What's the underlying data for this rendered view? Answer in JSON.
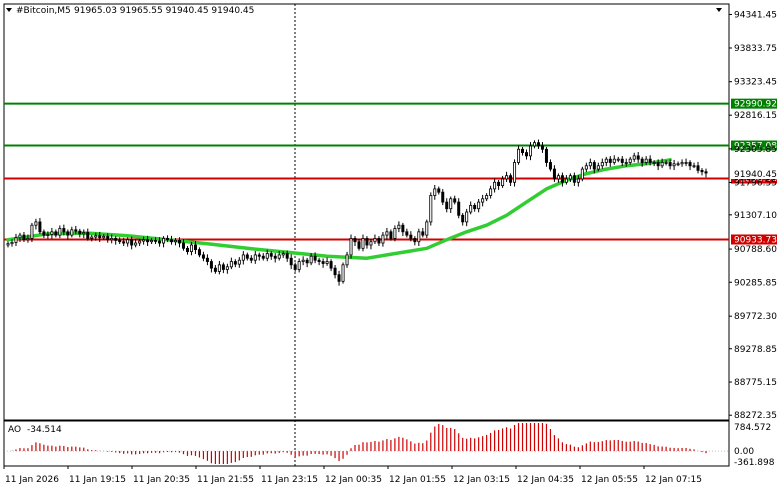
{
  "header": {
    "symbol": "#Bitcoin,M5",
    "ohlc": "91965.03 91965.55 91940.45 91940.45"
  },
  "colors": {
    "background": "#ffffff",
    "frame": "#000000",
    "candle": "#000000",
    "moving_average": "#32cd32",
    "level_green": "#008000",
    "level_red": "#d00000",
    "ao_positive": "#d00000",
    "ao_negative": "#d00000",
    "grid": "#ffffff"
  },
  "chart_data": {
    "type": "candlestick",
    "price_axis": {
      "ticks": [
        "94341.45",
        "93833.75",
        "93323.45",
        "92816.15",
        "92305.85",
        "91796.55",
        "91307.10",
        "90788.60",
        "90285.85",
        "89772.30",
        "89278.85",
        "88775.15",
        "88272.35"
      ],
      "ylim": [
        88200,
        94500
      ]
    },
    "time_axis": {
      "ticks": [
        "11 Jan 2026",
        "11 Jan 19:15",
        "11 Jan 20:35",
        "11 Jan 21:55",
        "11 Jan 23:15",
        "12 Jan 00:35",
        "12 Jan 01:55",
        "12 Jan 03:15",
        "12 Jan 04:35",
        "12 Jan 05:55",
        "12 Jan 07:15"
      ]
    },
    "current_price_label": "91940.45",
    "levels": [
      {
        "value": 92990.92,
        "label": "92990.92",
        "color": "green"
      },
      {
        "value": 92357.08,
        "label": "92357.08",
        "color": "green"
      },
      {
        "value": 91856.96,
        "label": "91856.96",
        "color": "red"
      },
      {
        "value": 90933.73,
        "label": "90933.73",
        "color": "red"
      }
    ],
    "closes": [
      90870,
      90890,
      90960,
      91000,
      90930,
      90950,
      91150,
      91200,
      91050,
      91000,
      91010,
      91050,
      91000,
      91100,
      91050,
      91000,
      91080,
      91060,
      91020,
      91040,
      90950,
      90970,
      90990,
      90960,
      90980,
      90930,
      90950,
      90920,
      90900,
      90880,
      90930,
      90850,
      90880,
      90910,
      90930,
      90900,
      90920,
      90910,
      90880,
      90950,
      90930,
      90900,
      90920,
      90880,
      90800,
      90750,
      90850,
      90780,
      90700,
      90650,
      90600,
      90500,
      90450,
      90550,
      90480,
      90520,
      90600,
      90560,
      90620,
      90700,
      90650,
      90620,
      90700,
      90680,
      90650,
      90720,
      90680,
      90650,
      90700,
      90720,
      90650,
      90550,
      90480,
      90600,
      90620,
      90580,
      90680,
      90620,
      90600,
      90570,
      90600,
      90500,
      90400,
      90300,
      90550,
      90700,
      90950,
      90900,
      90800,
      90950,
      90850,
      90900,
      90950,
      90880,
      91000,
      91050,
      90950,
      91100,
      91150,
      91050,
      91000,
      90950,
      90900,
      91050,
      91000,
      91200,
      91600,
      91700,
      91650,
      91500,
      91400,
      91550,
      91500,
      91300,
      91200,
      91350,
      91450,
      91400,
      91500,
      91550,
      91600,
      91700,
      91800,
      91750,
      91850,
      91900,
      91800,
      92100,
      92300,
      92250,
      92200,
      92350,
      92400,
      92350,
      92300,
      92100,
      92000,
      91850,
      91900,
      91800,
      91850,
      91900,
      91800,
      91850,
      92000,
      92050,
      92100,
      92000,
      92050,
      92100,
      92150,
      92100,
      92150,
      92150,
      92100,
      92100,
      92150,
      92200,
      92150,
      92100,
      92150,
      92100,
      92100,
      92050,
      92100,
      92100,
      92050,
      92080,
      92080,
      92100,
      92100,
      92050,
      92050,
      91980,
      91960,
      91940
    ],
    "moving_average": [
      [
        0,
        90930
      ],
      [
        10,
        91020
      ],
      [
        20,
        91030
      ],
      [
        30,
        90990
      ],
      [
        40,
        90930
      ],
      [
        50,
        90870
      ],
      [
        60,
        90800
      ],
      [
        70,
        90740
      ],
      [
        80,
        90680
      ],
      [
        90,
        90650
      ],
      [
        95,
        90700
      ],
      [
        100,
        90750
      ],
      [
        105,
        90800
      ],
      [
        110,
        90930
      ],
      [
        115,
        91050
      ],
      [
        120,
        91150
      ],
      [
        125,
        91300
      ],
      [
        130,
        91500
      ],
      [
        135,
        91700
      ],
      [
        140,
        91830
      ],
      [
        145,
        91930
      ],
      [
        150,
        92000
      ],
      [
        155,
        92050
      ],
      [
        160,
        92080
      ],
      [
        166,
        92140
      ]
    ],
    "ao_panel": {
      "label": "AO",
      "value": "-34.514",
      "ticks": [
        "784.572",
        "0.00",
        "-361.898"
      ],
      "ylim": [
        -361.898,
        784.572
      ]
    }
  }
}
